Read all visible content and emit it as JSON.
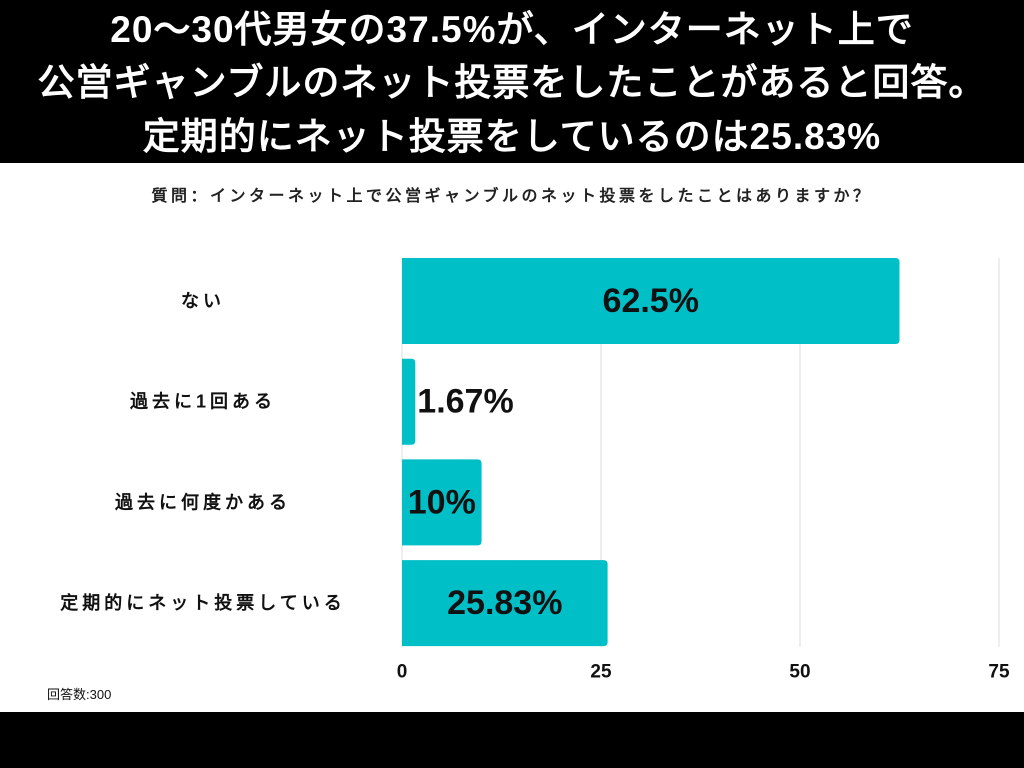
{
  "header": {
    "lines": [
      "20〜30代男女の37.5%が、インターネット上で",
      "公営ギャンブルのネット投票をしたことがあると回答。",
      "定期的にネット投票をしているのは25.83%"
    ]
  },
  "respondents": "回答数:300",
  "colors": {
    "bar": "#00BFC7",
    "banner_background": "#000000",
    "banner_text": "#FFFFFF",
    "gridline": "#DCDCDC",
    "text": "#111111"
  },
  "chart_data": {
    "type": "bar",
    "orientation": "horizontal",
    "title": "質問：インターネット上で公営ギャンブルのネット投票をしたことはありますか？",
    "categories": [
      "ない",
      "過去に1回ある",
      "過去に何度かある",
      "定期的にネット投票している"
    ],
    "values": [
      62.5,
      1.67,
      10,
      25.83
    ],
    "value_labels": [
      "62.5%",
      "1.67%",
      "10%",
      "25.83%"
    ],
    "xlim": [
      0,
      75
    ],
    "xticks": [
      0,
      25,
      50,
      75
    ],
    "grid": true,
    "legend": "none"
  }
}
